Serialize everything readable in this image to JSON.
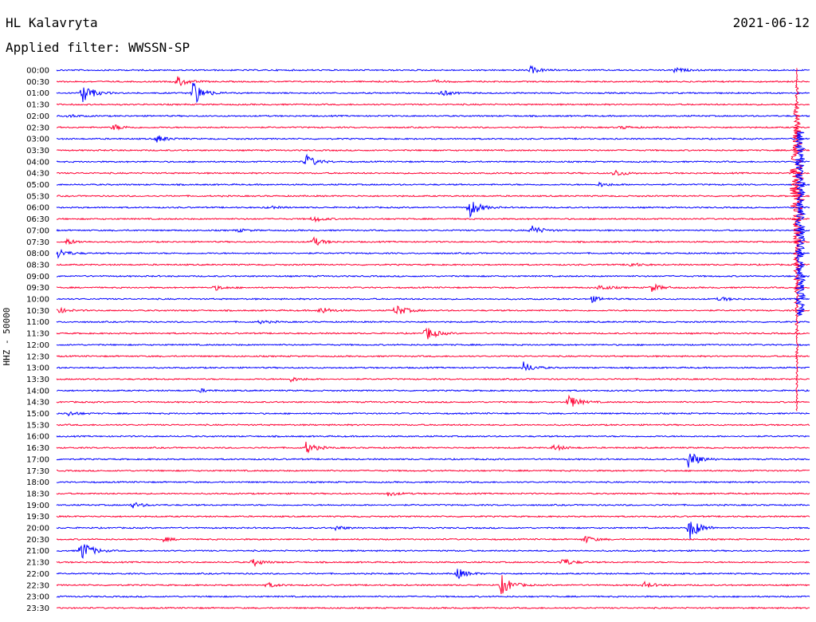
{
  "header": {
    "station": "HL Kalavryta",
    "date": "2021-06-12",
    "filter": "Applied filter: WWSSN-SP"
  },
  "chart_data": {
    "type": "line",
    "ylabel": "HHZ - 50000",
    "colors": {
      "odd": "#0000ff",
      "even": "#ff0033"
    },
    "rows": [
      "00:00",
      "00:30",
      "01:00",
      "01:30",
      "02:00",
      "02:30",
      "03:00",
      "03:30",
      "04:00",
      "04:30",
      "05:00",
      "05:30",
      "06:00",
      "06:30",
      "07:00",
      "07:30",
      "08:00",
      "08:30",
      "09:00",
      "09:30",
      "10:00",
      "10:30",
      "11:00",
      "11:30",
      "12:00",
      "12:30",
      "13:00",
      "13:30",
      "14:00",
      "14:30",
      "15:00",
      "15:30",
      "16:00",
      "16:30",
      "17:00",
      "17:30",
      "18:00",
      "18:30",
      "19:00",
      "19:30",
      "20:00",
      "20:30",
      "21:00",
      "21:30",
      "22:00",
      "22:30",
      "23:00",
      "23:30"
    ],
    "events": [
      {
        "row": 0,
        "t": 0.628,
        "a": 5
      },
      {
        "row": 0,
        "t": 0.82,
        "a": 3
      },
      {
        "row": 1,
        "t": 0.16,
        "a": 7
      },
      {
        "row": 1,
        "t": 0.5,
        "a": 2
      },
      {
        "row": 2,
        "t": 0.034,
        "a": 14
      },
      {
        "row": 2,
        "t": 0.18,
        "a": 18
      },
      {
        "row": 2,
        "t": 0.51,
        "a": 4
      },
      {
        "row": 4,
        "t": 0.015,
        "a": 2
      },
      {
        "row": 5,
        "t": 0.075,
        "a": 4
      },
      {
        "row": 5,
        "t": 0.75,
        "a": 2
      },
      {
        "row": 6,
        "t": 0.133,
        "a": 5
      },
      {
        "row": 8,
        "t": 0.33,
        "a": 10
      },
      {
        "row": 9,
        "t": 0.74,
        "a": 5
      },
      {
        "row": 10,
        "t": 0.72,
        "a": 3
      },
      {
        "row": 12,
        "t": 0.547,
        "a": 14
      },
      {
        "row": 12,
        "t": 0.28,
        "a": 2
      },
      {
        "row": 13,
        "t": 0.34,
        "a": 4
      },
      {
        "row": 14,
        "t": 0.63,
        "a": 7
      },
      {
        "row": 14,
        "t": 0.24,
        "a": 2
      },
      {
        "row": 15,
        "t": 0.012,
        "a": 4
      },
      {
        "row": 15,
        "t": 0.34,
        "a": 6
      },
      {
        "row": 16,
        "t": 0.0,
        "a": 7
      },
      {
        "row": 17,
        "t": 0.76,
        "a": 3
      },
      {
        "row": 19,
        "t": 0.72,
        "a": 4
      },
      {
        "row": 19,
        "t": 0.79,
        "a": 5
      },
      {
        "row": 19,
        "t": 0.21,
        "a": 3
      },
      {
        "row": 20,
        "t": 0.71,
        "a": 4
      },
      {
        "row": 20,
        "t": 0.88,
        "a": 3
      },
      {
        "row": 21,
        "t": 0.0,
        "a": 4
      },
      {
        "row": 21,
        "t": 0.35,
        "a": 5
      },
      {
        "row": 21,
        "t": 0.45,
        "a": 8
      },
      {
        "row": 22,
        "t": 0.27,
        "a": 2
      },
      {
        "row": 23,
        "t": 0.49,
        "a": 10
      },
      {
        "row": 26,
        "t": 0.62,
        "a": 7
      },
      {
        "row": 27,
        "t": 0.31,
        "a": 3
      },
      {
        "row": 28,
        "t": 0.19,
        "a": 2
      },
      {
        "row": 29,
        "t": 0.68,
        "a": 9
      },
      {
        "row": 30,
        "t": 0.015,
        "a": 3
      },
      {
        "row": 33,
        "t": 0.33,
        "a": 8
      },
      {
        "row": 33,
        "t": 0.66,
        "a": 4
      },
      {
        "row": 34,
        "t": 0.838,
        "a": 14
      },
      {
        "row": 37,
        "t": 0.44,
        "a": 3
      },
      {
        "row": 38,
        "t": 0.1,
        "a": 4
      },
      {
        "row": 40,
        "t": 0.84,
        "a": 16
      },
      {
        "row": 40,
        "t": 0.37,
        "a": 3
      },
      {
        "row": 41,
        "t": 0.14,
        "a": 3
      },
      {
        "row": 41,
        "t": 0.7,
        "a": 5
      },
      {
        "row": 42,
        "t": 0.032,
        "a": 16
      },
      {
        "row": 43,
        "t": 0.26,
        "a": 5
      },
      {
        "row": 43,
        "t": 0.67,
        "a": 6
      },
      {
        "row": 44,
        "t": 0.53,
        "a": 8
      },
      {
        "row": 45,
        "t": 0.59,
        "a": 14
      },
      {
        "row": 45,
        "t": 0.28,
        "a": 3
      },
      {
        "row": 45,
        "t": 0.78,
        "a": 4
      }
    ],
    "big_event": {
      "start_row": 4,
      "t": 0.983,
      "rows": 23,
      "a": 165
    }
  }
}
